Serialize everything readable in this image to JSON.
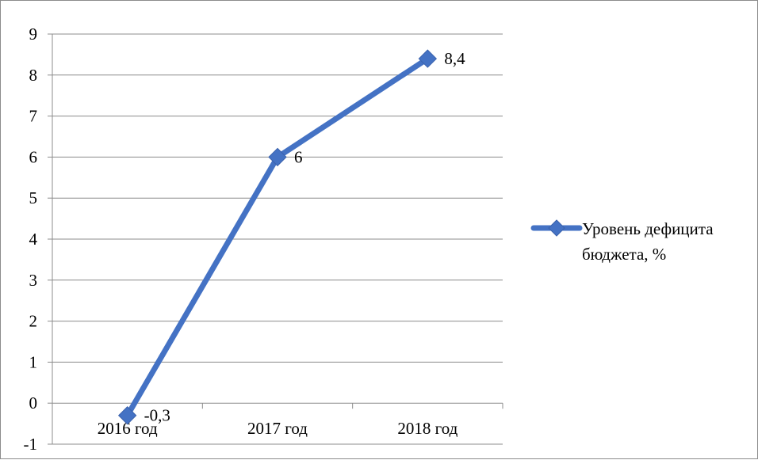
{
  "chart_data": {
    "type": "line",
    "categories": [
      "2016 год",
      "2017 год",
      "2018 год"
    ],
    "series": [
      {
        "name": "Уровень дефицита бюджета, %",
        "values": [
          -0.3,
          6,
          8.4
        ],
        "data_labels": [
          "-0,3",
          "6",
          "8,4"
        ],
        "color": "#4472c4"
      }
    ],
    "ylim": [
      -1,
      9
    ],
    "y_ticks": [
      -1,
      0,
      1,
      2,
      3,
      4,
      5,
      6,
      7,
      8,
      9
    ],
    "grid": true,
    "legend_position": "right",
    "legend_lines": [
      "Уровень дефицита",
      "бюджета, %"
    ],
    "title": "",
    "xlabel": "",
    "ylabel": ""
  }
}
